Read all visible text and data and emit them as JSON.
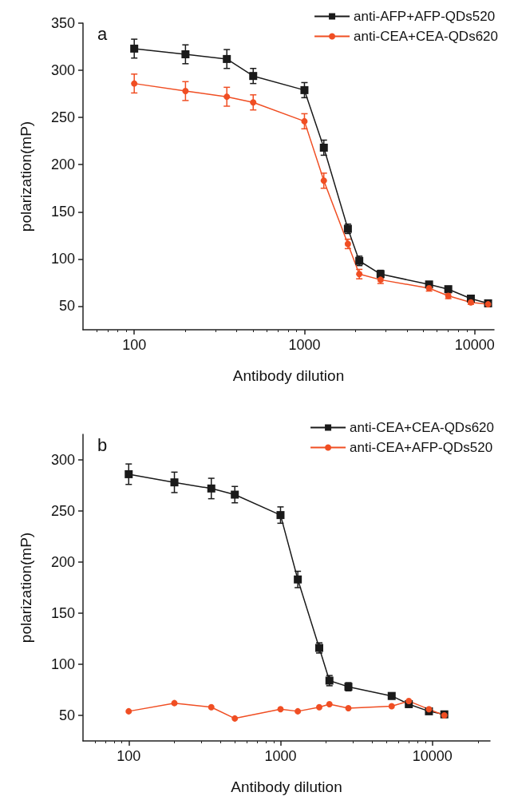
{
  "chart_data": [
    {
      "type": "line",
      "xlabel": "Antibody dilution",
      "ylabel": "polarization(mP)",
      "annotations": [
        "a"
      ],
      "x": [
        100,
        200,
        350,
        500,
        1000,
        1300,
        1800,
        2100,
        2800,
        5400,
        7000,
        9500,
        12000
      ],
      "log": "x",
      "xlim": [
        50,
        13000
      ],
      "xticks": [
        100,
        1000,
        10000
      ],
      "ylim": [
        25,
        350
      ],
      "yticks": [
        50,
        100,
        150,
        200,
        250,
        300,
        350
      ],
      "grid": false,
      "legend": "top right",
      "series": [
        {
          "name": "anti-AFP+AFP-QDs520",
          "color": "#1a1a1a",
          "marker": "square",
          "values": [
            323,
            317,
            312,
            294,
            279,
            218,
            132,
            98,
            84,
            73,
            68,
            58,
            53
          ],
          "errors": [
            10,
            10,
            10,
            8,
            8,
            8,
            5,
            5,
            4,
            3,
            3,
            2,
            2
          ]
        },
        {
          "name": "anti-CEA+CEA-QDs620",
          "color": "#f04e23",
          "marker": "circle",
          "values": [
            286,
            278,
            272,
            266,
            246,
            183,
            116,
            84,
            78,
            69,
            61,
            54,
            52
          ],
          "errors": [
            10,
            10,
            10,
            8,
            8,
            8,
            5,
            5,
            4,
            3,
            3,
            2,
            2
          ]
        }
      ]
    },
    {
      "type": "line",
      "xlabel": "Antibody dilution",
      "ylabel": "polarization(mP)",
      "annotations": [
        "b"
      ],
      "x": [
        100,
        200,
        350,
        500,
        1000,
        1300,
        1800,
        2100,
        2800,
        5400,
        7000,
        9500,
        12000
      ],
      "log": "x",
      "xlim": [
        50,
        24000
      ],
      "xticks": [
        100,
        1000,
        10000
      ],
      "ylim": [
        25,
        325
      ],
      "yticks": [
        50,
        100,
        150,
        200,
        250,
        300
      ],
      "grid": false,
      "legend": "top right",
      "series": [
        {
          "name": "anti-CEA+CEA-QDs620",
          "color": "#1a1a1a",
          "marker": "square",
          "values": [
            286,
            278,
            272,
            266,
            246,
            183,
            116,
            84,
            78,
            69,
            61,
            54,
            51
          ],
          "errors": [
            10,
            10,
            10,
            8,
            8,
            8,
            5,
            5,
            4,
            3,
            3,
            2,
            2
          ]
        },
        {
          "name": "anti-CEA+AFP-QDs520",
          "color": "#f04e23",
          "marker": "circle",
          "values": [
            54,
            62,
            58,
            47,
            56,
            54,
            58,
            61,
            57,
            59,
            64,
            56,
            50
          ]
        }
      ]
    }
  ]
}
